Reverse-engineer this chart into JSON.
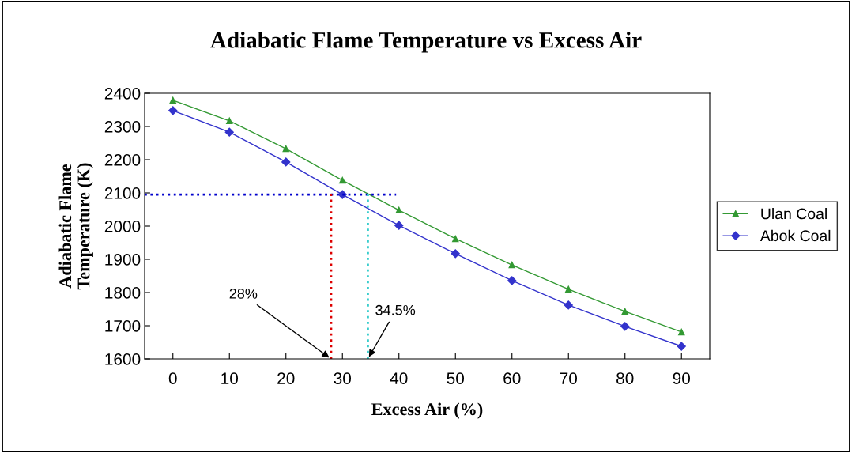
{
  "chart_data": {
    "type": "line",
    "title": "Adiabatic Flame Temperature vs Excess Air",
    "xlabel": "Excess Air (%)",
    "ylabel": "Adiabatic Flame\nTemperature (K)",
    "x": [
      0,
      10,
      20,
      30,
      40,
      50,
      60,
      70,
      80,
      90
    ],
    "series": [
      {
        "name": "Ulan Coal",
        "color": "#339933",
        "marker": "triangle",
        "values": [
          2379,
          2317,
          2233,
          2138,
          2048,
          1962,
          1883,
          1810,
          1743,
          1681
        ]
      },
      {
        "name": "Abok Coal",
        "color": "#3333cc",
        "marker": "diamond",
        "values": [
          2348,
          2283,
          2193,
          2095,
          2002,
          1917,
          1836,
          1762,
          1698,
          1638
        ]
      }
    ],
    "xlim": [
      -5,
      95
    ],
    "xticks": [
      0,
      10,
      20,
      30,
      40,
      50,
      60,
      70,
      80,
      90
    ],
    "ylim": [
      1600,
      2400
    ],
    "yticks": [
      1600,
      1700,
      1800,
      1900,
      2000,
      2100,
      2200,
      2300,
      2400
    ],
    "ref_lines": [
      {
        "axis": "y",
        "value": 2095,
        "color": "#0000cc",
        "line_style": "dotted"
      },
      {
        "axis": "x",
        "value": 28,
        "color": "#dd0000",
        "line_style": "dotted"
      },
      {
        "axis": "x",
        "value": 34.5,
        "color": "#33cccc",
        "line_style": "dotted"
      }
    ],
    "annotations": [
      {
        "text": "28%",
        "x": 28,
        "y": 1600
      },
      {
        "text": "34.5%",
        "x": 34.5,
        "y": 1600
      }
    ],
    "grid": false,
    "legend": "right",
    "line_style": "solid"
  }
}
